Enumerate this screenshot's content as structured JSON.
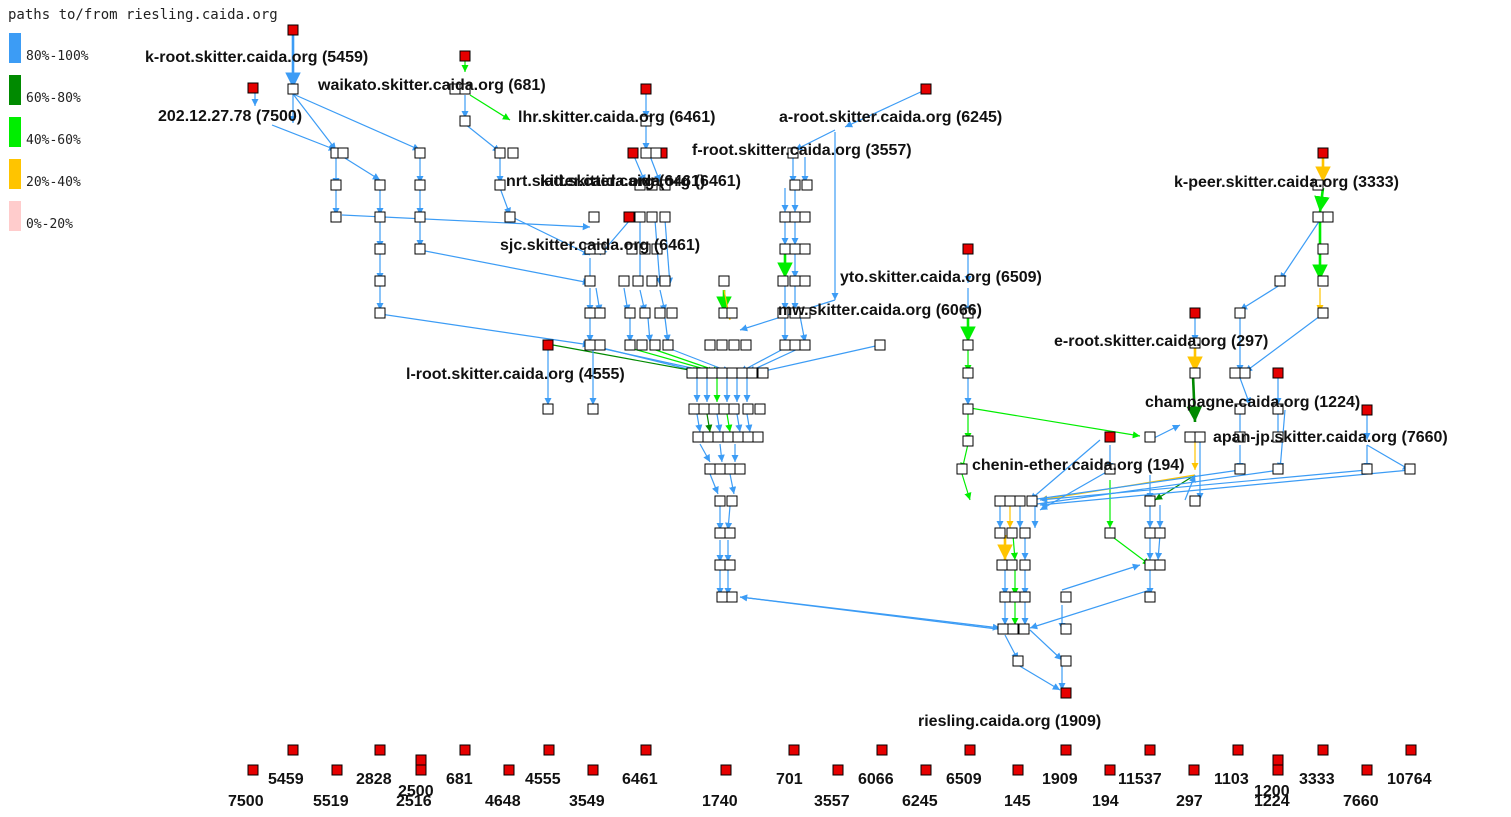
{
  "title": "paths to/from riesling.caida.org",
  "colors": {
    "blue": "#3c9cf5",
    "darkgreen": "#008a00",
    "green": "#00ee00",
    "orange": "#ffc400",
    "pink": "#ffcccc",
    "red": "#e60000"
  },
  "legend": [
    {
      "label": "80%-100%",
      "color": "#3c9cf5"
    },
    {
      "label": "60%-80%",
      "color": "#008a00"
    },
    {
      "label": "40%-60%",
      "color": "#00ee00"
    },
    {
      "label": "20%-40%",
      "color": "#ffc400"
    },
    {
      "label": "0%-20%",
      "color": "#ffcccc"
    }
  ],
  "monitors": [
    {
      "label": "k-root.skitter.caida.org (5459)"
    },
    {
      "label": "waikato.skitter.caida.org (681)"
    },
    {
      "label": "202.12.27.78 (7500)"
    },
    {
      "label": "lhr.skitter.caida.org (6461)"
    },
    {
      "label": "a-root.skitter.caida.org (6245)"
    },
    {
      "label": "f-root.skitter.caida.org (3557)"
    },
    {
      "label": "nrt.skitter.caida.org (6461)"
    },
    {
      "label": "iad.skitter.caida.org (6461)"
    },
    {
      "label": "sjc.skitter.caida.org (6461)"
    },
    {
      "label": "k-peer.skitter.caida.org (3333)"
    },
    {
      "label": "yto.skitter.caida.org (6509)"
    },
    {
      "label": "mw.skitter.caida.org (6066)"
    },
    {
      "label": "e-root.skitter.caida.org (297)"
    },
    {
      "label": "l-root.skitter.caida.org (4555)"
    },
    {
      "label": "champagne.caida.org (1224)"
    },
    {
      "label": "apan-jp.skitter.caida.org (7660)"
    },
    {
      "label": "chenin-ether.caida.org (194)"
    },
    {
      "label": "riesling.caida.org (1909)"
    }
  ],
  "as_row": [
    "7500",
    "5459",
    "5519",
    "2828",
    "2500",
    "2516",
    "681",
    "4648",
    "4555",
    "3549",
    "6461",
    "1740",
    "701",
    "3557",
    "6066",
    "6245",
    "6509",
    "145",
    "1909",
    "194",
    "11537",
    "297",
    "1103",
    "1200",
    "1224",
    "3333",
    "7660",
    "10764"
  ]
}
